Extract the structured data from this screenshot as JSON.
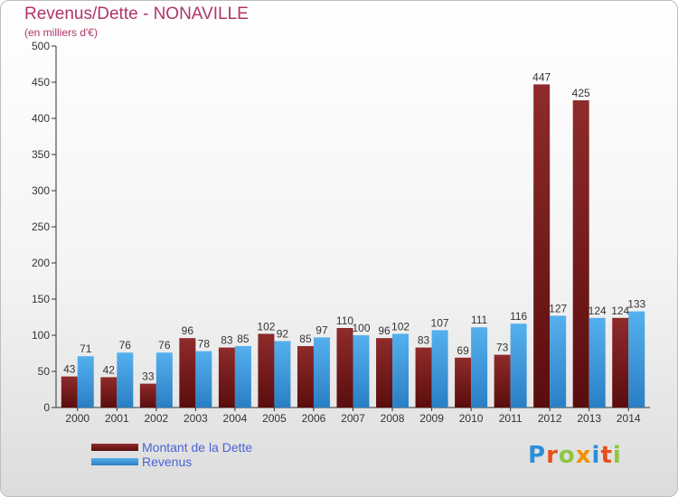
{
  "title": "Revenus/Dette - NONAVILLE",
  "subtitle": "(en milliers d'€)",
  "logo": {
    "text": "Proxiti",
    "letters": [
      {
        "ch": "P",
        "color": "#2e8fd8"
      },
      {
        "ch": "r",
        "color": "#e94e1b"
      },
      {
        "ch": "o",
        "color": "#8dc63f"
      },
      {
        "ch": "x",
        "color": "#f39200"
      },
      {
        "ch": "i",
        "color": "#2e8fd8"
      },
      {
        "ch": "t",
        "color": "#e94e1b"
      },
      {
        "ch": "i",
        "color": "#8dc63f"
      }
    ]
  },
  "colors": {
    "debt": "#7a1a1a",
    "revenue": "#3d9de0",
    "title": "#b0336a",
    "legend_text": "#4a62d6"
  },
  "chart_data": {
    "type": "bar",
    "title": "Revenus/Dette - NONAVILLE",
    "subtitle": "(en milliers d'€)",
    "xlabel": "",
    "ylabel": "",
    "ylim": [
      0,
      500
    ],
    "yticks": [
      0,
      50,
      100,
      150,
      200,
      250,
      300,
      350,
      400,
      450,
      500
    ],
    "grid": false,
    "legend_position": "bottom-left",
    "categories": [
      "2000",
      "2001",
      "2002",
      "2003",
      "2004",
      "2005",
      "2006",
      "2007",
      "2008",
      "2009",
      "2010",
      "2011",
      "2012",
      "2013",
      "2014"
    ],
    "series": [
      {
        "name": "Montant de la Dette",
        "values": [
          43,
          42,
          33,
          96,
          83,
          102,
          85,
          110,
          96,
          83,
          69,
          73,
          447,
          425,
          124
        ]
      },
      {
        "name": "Revenus",
        "values": [
          71,
          76,
          76,
          78,
          85,
          92,
          97,
          100,
          102,
          107,
          111,
          116,
          127,
          124,
          133
        ]
      }
    ]
  }
}
